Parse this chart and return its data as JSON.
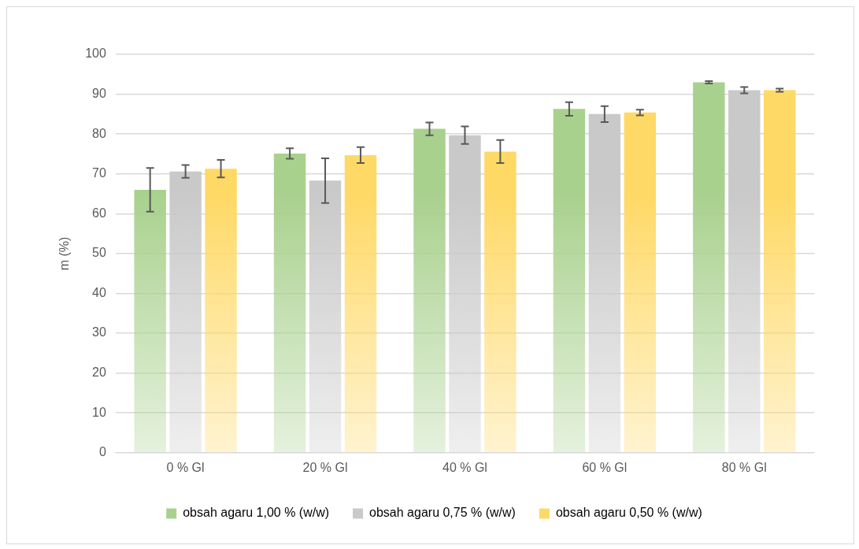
{
  "chart_data": {
    "type": "bar",
    "ylabel": "m (%)",
    "categories": [
      "0 % Gl",
      "20 % Gl",
      "40 % Gl",
      "60 % Gl",
      "80 % Gl"
    ],
    "series": [
      {
        "name": "obsah agaru 1,00 % (w/w)",
        "color": "#a9d18e",
        "values": [
          66.0,
          75.1,
          81.3,
          86.3,
          93.0
        ],
        "errors": [
          5.5,
          1.3,
          1.6,
          1.7,
          0.3
        ]
      },
      {
        "name": "obsah agaru 0,75 % (w/w)",
        "color": "#c9c9c9",
        "values": [
          70.6,
          68.3,
          79.7,
          85.0,
          91.0
        ],
        "errors": [
          1.6,
          5.6,
          2.2,
          2.0,
          0.8
        ]
      },
      {
        "name": "obsah agaru 0,50 % (w/w)",
        "color": "#ffd966",
        "values": [
          71.3,
          74.7,
          75.6,
          85.4,
          91.0
        ],
        "errors": [
          2.2,
          2.0,
          2.9,
          0.7,
          0.4
        ]
      }
    ],
    "ylim": [
      0,
      100
    ],
    "yticks": [
      0,
      10,
      20,
      30,
      40,
      50,
      60,
      70,
      80,
      90,
      100
    ],
    "grid": "y",
    "legend": "bottom"
  }
}
